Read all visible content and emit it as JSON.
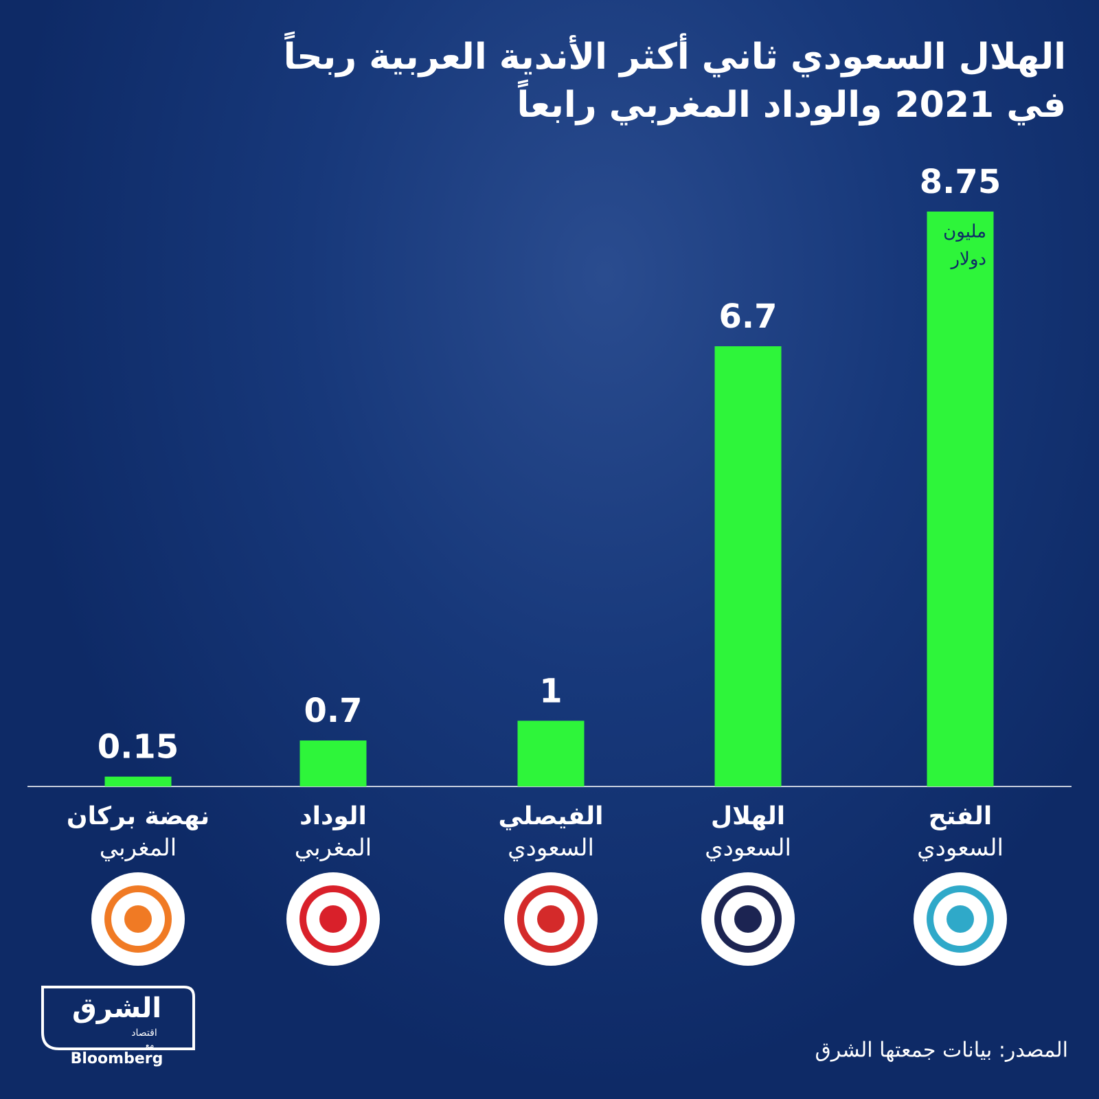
{
  "chart_data": {
    "type": "bar",
    "title": [
      "الهلال السعودي ثاني أكثر الأندية العربية ربحاً",
      "في 2021 والوداد المغربي رابعاً"
    ],
    "categories": [
      "نهضة بركان",
      "الوداد",
      "الفيصلي",
      "الهلال",
      "الفتح"
    ],
    "countries": [
      "المغربي",
      "المغربي",
      "السعودي",
      "السعودي",
      "السعودي"
    ],
    "values": [
      0.15,
      0.7,
      1,
      6.7,
      8.75
    ],
    "unit": [
      "مليون",
      "دولار"
    ],
    "color": "#2ef53a",
    "logo_colors": [
      "#f07a24",
      "#d9202a",
      "#d42a2a",
      "#1c2452",
      "#2fa9c9"
    ],
    "source": "المصدر: بيانات جمعتها الشرق"
  },
  "brand": {
    "name": "الشرق",
    "section": "اقتصاد",
    "with": "مع",
    "partner": "Bloomberg"
  }
}
